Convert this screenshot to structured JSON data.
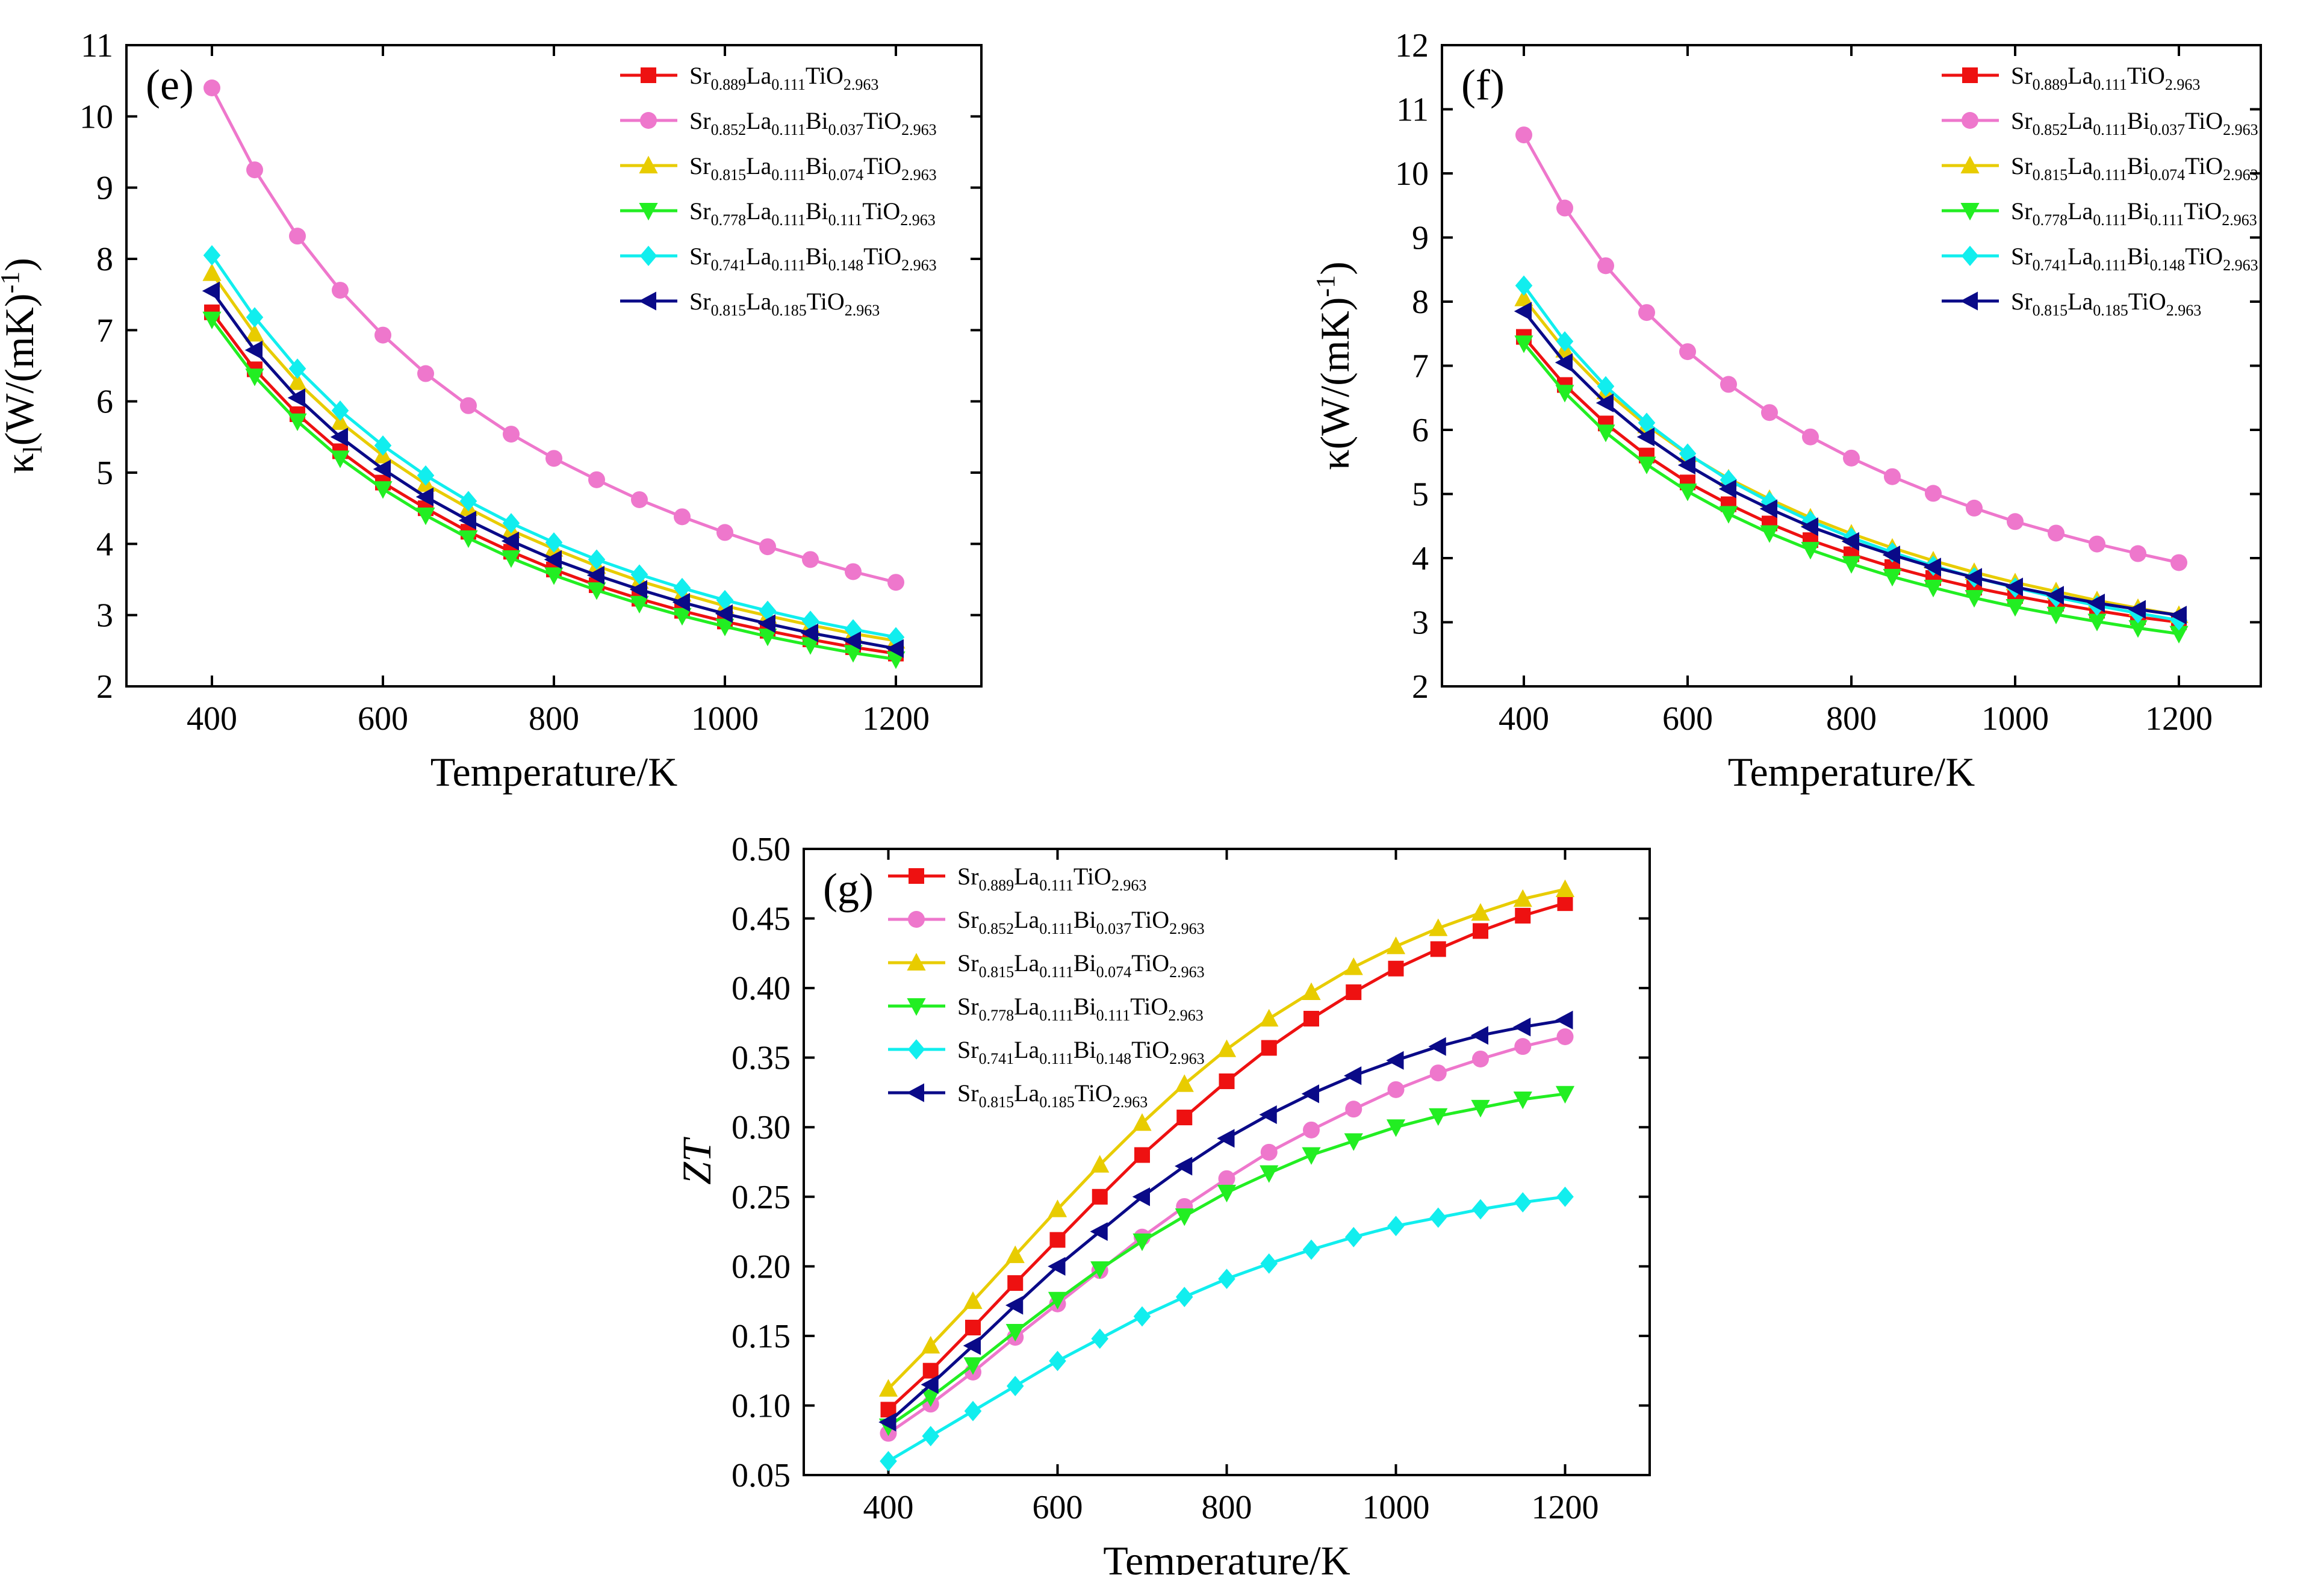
{
  "colors": {
    "red": "#ee1111",
    "pink": "#ee77cc",
    "yellow": "#e8cc00",
    "green": "#22ee22",
    "cyan": "#11eeee",
    "navy": "#0a0a88"
  },
  "legend_entries": [
    {
      "plain": "Sr0.889La0.111TiO2.963",
      "parts": [
        [
          "Sr",
          "0.889"
        ],
        [
          "La",
          "0.111"
        ],
        [
          "TiO",
          "2.963"
        ]
      ],
      "color_key": "red",
      "marker": "square"
    },
    {
      "plain": "Sr0.852La0.111Bi0.037TiO2.963",
      "parts": [
        [
          "Sr",
          "0.852"
        ],
        [
          "La",
          "0.111"
        ],
        [
          "Bi",
          "0.037"
        ],
        [
          "TiO",
          "2.963"
        ]
      ],
      "color_key": "pink",
      "marker": "circle"
    },
    {
      "plain": "Sr0.815La0.111Bi0.074TiO2.963",
      "parts": [
        [
          "Sr",
          "0.815"
        ],
        [
          "La",
          "0.111"
        ],
        [
          "Bi",
          "0.074"
        ],
        [
          "TiO",
          "2.963"
        ]
      ],
      "color_key": "yellow",
      "marker": "triangle-up"
    },
    {
      "plain": "Sr0.778La0.111Bi0.111TiO2.963",
      "parts": [
        [
          "Sr",
          "0.778"
        ],
        [
          "La",
          "0.111"
        ],
        [
          "Bi",
          "0.111"
        ],
        [
          "TiO",
          "2.963"
        ]
      ],
      "color_key": "green",
      "marker": "triangle-down"
    },
    {
      "plain": "Sr0.741La0.111Bi0.148TiO2.963",
      "parts": [
        [
          "Sr",
          "0.741"
        ],
        [
          "La",
          "0.111"
        ],
        [
          "Bi",
          "0.148"
        ],
        [
          "TiO",
          "2.963"
        ]
      ],
      "color_key": "cyan",
      "marker": "diamond"
    },
    {
      "plain": "Sr0.815La0.185TiO2.963",
      "parts": [
        [
          "Sr",
          "0.815"
        ],
        [
          "La",
          "0.185"
        ],
        [
          "TiO",
          "2.963"
        ]
      ],
      "color_key": "navy",
      "marker": "triangle-left"
    }
  ],
  "chart_data": [
    {
      "type": "line",
      "panel": "(e)",
      "title": "",
      "xlabel": "Temperature/K",
      "ylabel": "κl(W/(mK)-1)",
      "ylabel_parts": {
        "symbol": "κ",
        "sub": "l",
        "main": "(W/(mK)",
        "sup": "-1",
        "end": ")"
      },
      "xlim": [
        300,
        1300
      ],
      "ylim": [
        2,
        11
      ],
      "xticks": [
        400,
        600,
        800,
        1000,
        1200
      ],
      "yticks": [
        2,
        3,
        4,
        5,
        6,
        7,
        8,
        9,
        10,
        11
      ],
      "grid": false,
      "legend_position": "top-right",
      "x": [
        400,
        450,
        500,
        550,
        600,
        650,
        700,
        750,
        800,
        850,
        900,
        950,
        1000,
        1050,
        1100,
        1150,
        1200
      ],
      "series": [
        {
          "name": "Sr0.889La0.111TiO2.963",
          "values": [
            7.25,
            6.45,
            5.82,
            5.3,
            4.86,
            4.5,
            4.17,
            3.89,
            3.64,
            3.42,
            3.23,
            3.06,
            2.91,
            2.78,
            2.66,
            2.55,
            2.46
          ]
        },
        {
          "name": "Sr0.852La0.111Bi0.037TiO2.963",
          "values": [
            10.4,
            9.25,
            8.32,
            7.56,
            6.93,
            6.39,
            5.94,
            5.54,
            5.2,
            4.9,
            4.62,
            4.38,
            4.16,
            3.96,
            3.78,
            3.61,
            3.46
          ]
        },
        {
          "name": "Sr0.815La0.111Bi0.074TiO2.963",
          "values": [
            7.8,
            6.95,
            6.27,
            5.71,
            5.24,
            4.84,
            4.5,
            4.19,
            3.93,
            3.69,
            3.48,
            3.3,
            3.13,
            2.99,
            2.86,
            2.74,
            2.64
          ]
        },
        {
          "name": "Sr0.778La0.111Bi0.111TiO2.963",
          "values": [
            7.15,
            6.35,
            5.72,
            5.2,
            4.77,
            4.4,
            4.08,
            3.8,
            3.56,
            3.35,
            3.16,
            2.99,
            2.84,
            2.7,
            2.58,
            2.47,
            2.38
          ]
        },
        {
          "name": "Sr0.741La0.111Bi0.148TiO2.963",
          "values": [
            8.05,
            7.18,
            6.46,
            5.87,
            5.38,
            4.96,
            4.6,
            4.29,
            4.02,
            3.78,
            3.57,
            3.38,
            3.21,
            3.06,
            2.92,
            2.8,
            2.69
          ]
        },
        {
          "name": "Sr0.815La0.185TiO2.963",
          "values": [
            7.55,
            6.72,
            6.05,
            5.5,
            5.05,
            4.66,
            4.33,
            4.04,
            3.78,
            3.56,
            3.36,
            3.18,
            3.02,
            2.88,
            2.75,
            2.64,
            2.53
          ]
        }
      ]
    },
    {
      "type": "line",
      "panel": "(f)",
      "title": "",
      "xlabel": "Temperature/K",
      "ylabel": "κ(W/(mK)-1)",
      "ylabel_parts": {
        "symbol": "κ",
        "sub": "",
        "main": "(W/(mK)",
        "sup": "-1",
        "end": ")"
      },
      "xlim": [
        300,
        1300
      ],
      "ylim": [
        2,
        12
      ],
      "xticks": [
        400,
        600,
        800,
        1000,
        1200
      ],
      "yticks": [
        2,
        3,
        4,
        5,
        6,
        7,
        8,
        9,
        10,
        11,
        12
      ],
      "grid": false,
      "legend_position": "top-right",
      "x": [
        400,
        450,
        500,
        550,
        600,
        650,
        700,
        750,
        800,
        850,
        900,
        950,
        1000,
        1050,
        1100,
        1150,
        1200
      ],
      "series": [
        {
          "name": "Sr0.889La0.111TiO2.963",
          "values": [
            7.45,
            6.7,
            6.1,
            5.6,
            5.18,
            4.84,
            4.54,
            4.28,
            4.06,
            3.86,
            3.69,
            3.54,
            3.41,
            3.29,
            3.18,
            3.08,
            3.0
          ]
        },
        {
          "name": "Sr0.852La0.111Bi0.037TiO2.963",
          "values": [
            10.6,
            9.46,
            8.56,
            7.83,
            7.22,
            6.71,
            6.27,
            5.89,
            5.56,
            5.27,
            5.01,
            4.78,
            4.57,
            4.39,
            4.22,
            4.07,
            3.93
          ]
        },
        {
          "name": "Sr0.815La0.111Bi0.074TiO2.963",
          "values": [
            8.05,
            7.25,
            6.6,
            6.07,
            5.62,
            5.24,
            4.92,
            4.63,
            4.38,
            4.16,
            3.96,
            3.78,
            3.62,
            3.48,
            3.34,
            3.22,
            3.11
          ]
        },
        {
          "name": "Sr0.778La0.111Bi0.111TiO2.963",
          "values": [
            7.35,
            6.58,
            5.96,
            5.46,
            5.04,
            4.69,
            4.39,
            4.13,
            3.91,
            3.71,
            3.54,
            3.38,
            3.24,
            3.12,
            3.01,
            2.91,
            2.82
          ]
        },
        {
          "name": "Sr0.741La0.111Bi0.148TiO2.963",
          "values": [
            8.25,
            7.38,
            6.68,
            6.11,
            5.63,
            5.22,
            4.88,
            4.58,
            4.32,
            4.09,
            3.88,
            3.7,
            3.54,
            3.39,
            3.26,
            3.14,
            3.03
          ]
        },
        {
          "name": "Sr0.815La0.185TiO2.963",
          "values": [
            7.85,
            7.05,
            6.42,
            5.89,
            5.45,
            5.08,
            4.77,
            4.49,
            4.26,
            4.05,
            3.86,
            3.7,
            3.55,
            3.42,
            3.3,
            3.2,
            3.11
          ]
        }
      ]
    },
    {
      "type": "line",
      "panel": "(g)",
      "title": "",
      "xlabel": "Temperature/K",
      "ylabel": "ZT",
      "ylabel_parts": {
        "symbol": "ZT",
        "sub": "",
        "main": "",
        "sup": "",
        "end": ""
      },
      "ylabel_italic": true,
      "xlim": [
        300,
        1300
      ],
      "ylim": [
        0.05,
        0.5
      ],
      "xticks": [
        400,
        600,
        800,
        1000,
        1200
      ],
      "yticks": [
        0.05,
        0.1,
        0.15,
        0.2,
        0.25,
        0.3,
        0.35,
        0.4,
        0.45,
        0.5
      ],
      "ytick_decimals": 2,
      "grid": false,
      "legend_position": "top-left",
      "x": [
        400,
        450,
        500,
        550,
        600,
        650,
        700,
        750,
        800,
        850,
        900,
        950,
        1000,
        1050,
        1100,
        1150,
        1200
      ],
      "series": [
        {
          "name": "Sr0.889La0.111TiO2.963",
          "values": [
            0.097,
            0.125,
            0.156,
            0.188,
            0.219,
            0.25,
            0.28,
            0.307,
            0.333,
            0.357,
            0.378,
            0.397,
            0.414,
            0.428,
            0.441,
            0.452,
            0.461
          ]
        },
        {
          "name": "Sr0.852La0.111Bi0.037TiO2.963",
          "values": [
            0.08,
            0.101,
            0.124,
            0.149,
            0.173,
            0.197,
            0.221,
            0.243,
            0.263,
            0.282,
            0.298,
            0.313,
            0.327,
            0.339,
            0.349,
            0.358,
            0.365
          ]
        },
        {
          "name": "Sr0.815La0.111Bi0.074TiO2.963",
          "values": [
            0.112,
            0.143,
            0.175,
            0.208,
            0.241,
            0.273,
            0.303,
            0.331,
            0.356,
            0.378,
            0.397,
            0.415,
            0.43,
            0.443,
            0.454,
            0.464,
            0.471
          ]
        },
        {
          "name": "Sr0.778La0.111Bi0.111TiO2.963",
          "values": [
            0.085,
            0.106,
            0.129,
            0.153,
            0.176,
            0.198,
            0.218,
            0.236,
            0.253,
            0.267,
            0.28,
            0.29,
            0.3,
            0.308,
            0.314,
            0.32,
            0.324
          ]
        },
        {
          "name": "Sr0.741La0.111Bi0.148TiO2.963",
          "values": [
            0.06,
            0.078,
            0.096,
            0.114,
            0.132,
            0.148,
            0.164,
            0.178,
            0.191,
            0.202,
            0.212,
            0.221,
            0.229,
            0.235,
            0.241,
            0.246,
            0.25
          ]
        },
        {
          "name": "Sr0.815La0.185TiO2.963",
          "values": [
            0.088,
            0.115,
            0.143,
            0.172,
            0.2,
            0.225,
            0.25,
            0.272,
            0.292,
            0.309,
            0.324,
            0.337,
            0.348,
            0.358,
            0.366,
            0.372,
            0.377
          ]
        }
      ]
    }
  ]
}
